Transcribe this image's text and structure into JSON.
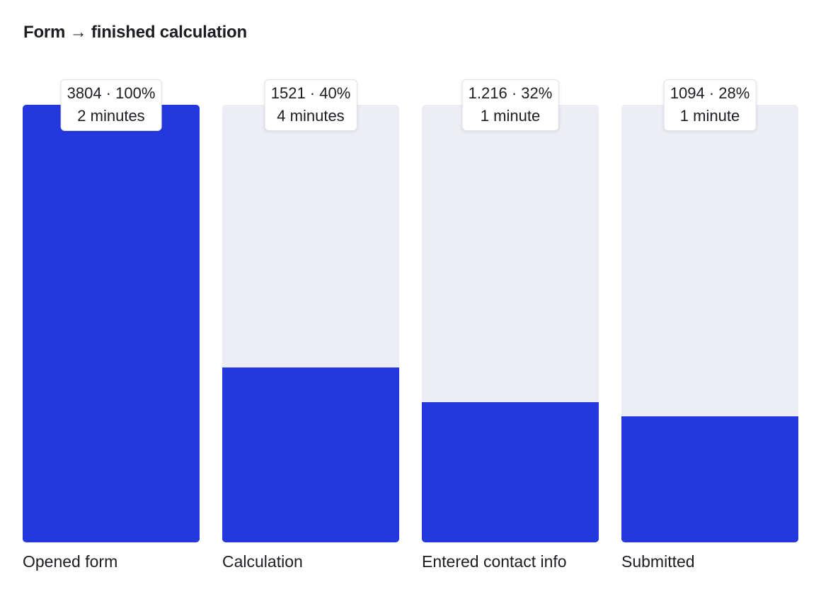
{
  "chart_data": {
    "type": "bar",
    "title": "Form → finished calculation",
    "categories": [
      "Opened form",
      "Calculation",
      "Entered contact info",
      "Submitted"
    ],
    "values": [
      3804,
      1521,
      1216,
      1094
    ],
    "percent": [
      100,
      40,
      32,
      28
    ],
    "count_labels": [
      "3804 · 100%",
      "1521 · 40%",
      "1.216 · 32%",
      "1094 · 28%"
    ],
    "duration_labels": [
      "2 minutes",
      "4 minutes",
      "1 minute",
      "1 minute"
    ],
    "ylim": [
      0,
      100
    ],
    "grid": false,
    "colors": {
      "fill": "#2339dd",
      "track": "#ededf6"
    }
  }
}
